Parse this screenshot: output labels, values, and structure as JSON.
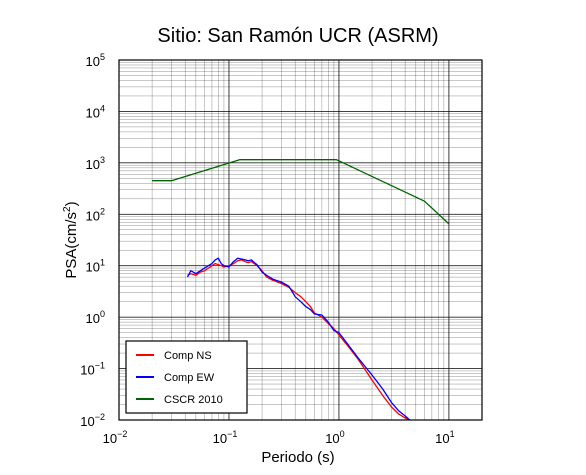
{
  "chart_data": {
    "type": "line",
    "title": "Sitio: San Ramón UCR (ASRM)",
    "xlabel": "Periodo (s)",
    "ylabel_main": "PSA(cm/s",
    "ylabel_sup": "2",
    "ylabel_close": ")",
    "x_scale": "log",
    "y_scale": "log",
    "xlim": [
      0.01,
      20
    ],
    "ylim": [
      0.01,
      100000
    ],
    "x_ticks": [
      {
        "value": 0.01,
        "base": "10",
        "exp": "−2"
      },
      {
        "value": 0.1,
        "base": "10",
        "exp": "−1"
      },
      {
        "value": 1,
        "base": "10",
        "exp": "0"
      },
      {
        "value": 10,
        "base": "10",
        "exp": "1"
      }
    ],
    "y_ticks": [
      {
        "value": 0.01,
        "base": "10",
        "exp": "−2"
      },
      {
        "value": 0.1,
        "base": "10",
        "exp": "−1"
      },
      {
        "value": 1,
        "base": "10",
        "exp": "0"
      },
      {
        "value": 10,
        "base": "10",
        "exp": "1"
      },
      {
        "value": 100,
        "base": "10",
        "exp": "2"
      },
      {
        "value": 1000,
        "base": "10",
        "exp": "3"
      },
      {
        "value": 10000,
        "base": "10",
        "exp": "4"
      },
      {
        "value": 100000,
        "base": "10",
        "exp": "5"
      }
    ],
    "grid": true,
    "legend_position": "bottom-left",
    "series": [
      {
        "name": "Comp NS",
        "color": "#ff0000",
        "x": [
          0.042,
          0.045,
          0.05,
          0.055,
          0.06,
          0.065,
          0.07,
          0.075,
          0.08,
          0.085,
          0.09,
          0.1,
          0.11,
          0.12,
          0.13,
          0.14,
          0.15,
          0.16,
          0.17,
          0.18,
          0.2,
          0.22,
          0.25,
          0.3,
          0.35,
          0.4,
          0.45,
          0.5,
          0.55,
          0.6,
          0.7,
          0.8,
          0.9,
          1.0,
          1.2,
          1.5,
          2.0,
          2.5,
          3.0,
          3.5,
          4.0,
          4.4
        ],
        "y": [
          6.5,
          7.0,
          6.5,
          7.5,
          8.0,
          9.0,
          10.0,
          11.0,
          10.5,
          10.0,
          9.5,
          10.0,
          11.0,
          12.5,
          13.0,
          12.0,
          11.5,
          12.0,
          11.0,
          10.0,
          8.0,
          6.0,
          5.2,
          4.5,
          3.8,
          3.0,
          2.5,
          2.0,
          1.6,
          1.2,
          1.0,
          0.75,
          0.6,
          0.45,
          0.28,
          0.15,
          0.06,
          0.03,
          0.018,
          0.013,
          0.011,
          0.01
        ]
      },
      {
        "name": "Comp EW",
        "color": "#0000ff",
        "x": [
          0.042,
          0.045,
          0.05,
          0.055,
          0.06,
          0.065,
          0.07,
          0.075,
          0.08,
          0.085,
          0.09,
          0.1,
          0.11,
          0.12,
          0.13,
          0.14,
          0.15,
          0.16,
          0.17,
          0.18,
          0.2,
          0.22,
          0.25,
          0.3,
          0.35,
          0.4,
          0.45,
          0.5,
          0.55,
          0.6,
          0.7,
          0.8,
          0.9,
          1.0,
          1.2,
          1.5,
          2.0,
          2.5,
          3.0,
          3.5,
          4.0,
          4.4
        ],
        "y": [
          6.0,
          8.0,
          7.0,
          8.0,
          9.0,
          10.0,
          11.0,
          13.0,
          14.0,
          11.0,
          10.0,
          9.5,
          12.0,
          14.0,
          13.5,
          13.0,
          12.5,
          13.0,
          11.5,
          10.5,
          7.5,
          6.5,
          5.5,
          4.8,
          4.0,
          2.5,
          2.0,
          1.6,
          1.4,
          1.15,
          1.1,
          0.8,
          0.55,
          0.5,
          0.3,
          0.16,
          0.075,
          0.04,
          0.022,
          0.015,
          0.012,
          0.01
        ]
      },
      {
        "name": "CSCR 2010",
        "color": "#006400",
        "x": [
          0.02,
          0.03,
          0.125,
          0.95,
          6.0,
          10.0
        ],
        "y": [
          450,
          450,
          1150,
          1150,
          180,
          65
        ]
      }
    ]
  }
}
